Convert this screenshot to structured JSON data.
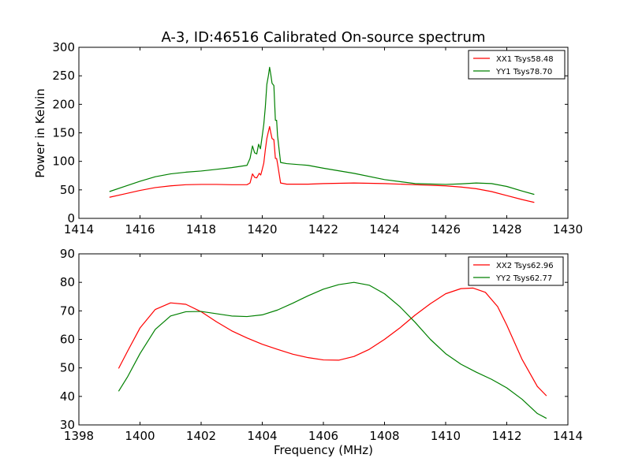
{
  "chart_data": [
    {
      "type": "line",
      "title": "A-3, ID:46516 Calibrated On-source spectrum",
      "xlabel": "",
      "ylabel": "Power in Kelvin",
      "xlim": [
        1414,
        1430
      ],
      "ylim": [
        0,
        300
      ],
      "xticks": [
        1414,
        1416,
        1418,
        1420,
        1422,
        1424,
        1426,
        1428,
        1430
      ],
      "yticks": [
        0,
        50,
        100,
        150,
        200,
        250,
        300
      ],
      "legend_position": "top-right",
      "grid": false,
      "series": [
        {
          "name": "XX1 Tsys58.48",
          "color": "#ff0000",
          "points": [
            [
              1415.0,
              37
            ],
            [
              1415.5,
              43
            ],
            [
              1416.0,
              49
            ],
            [
              1416.5,
              54
            ],
            [
              1417.0,
              57
            ],
            [
              1417.5,
              59
            ],
            [
              1418.0,
              59.5
            ],
            [
              1418.5,
              59.5
            ],
            [
              1419.0,
              59
            ],
            [
              1419.5,
              59
            ],
            [
              1419.6,
              62
            ],
            [
              1419.68,
              78
            ],
            [
              1419.75,
              72
            ],
            [
              1419.82,
              71
            ],
            [
              1419.9,
              79
            ],
            [
              1419.95,
              76
            ],
            [
              1420.0,
              86
            ],
            [
              1420.05,
              97
            ],
            [
              1420.1,
              120
            ],
            [
              1420.15,
              140
            ],
            [
              1420.2,
              152
            ],
            [
              1420.24,
              161
            ],
            [
              1420.28,
              150
            ],
            [
              1420.32,
              140
            ],
            [
              1420.38,
              138
            ],
            [
              1420.43,
              105
            ],
            [
              1420.47,
              105
            ],
            [
              1420.5,
              96
            ],
            [
              1420.6,
              62
            ],
            [
              1420.8,
              60
            ],
            [
              1421.5,
              60
            ],
            [
              1422.0,
              61
            ],
            [
              1423.0,
              62
            ],
            [
              1424.0,
              61
            ],
            [
              1425.0,
              59
            ],
            [
              1426.0,
              57
            ],
            [
              1426.5,
              55
            ],
            [
              1427.0,
              52
            ],
            [
              1427.5,
              47
            ],
            [
              1428.0,
              40
            ],
            [
              1428.5,
              33
            ],
            [
              1428.9,
              28
            ]
          ]
        },
        {
          "name": "YY1 Tsys78.70",
          "color": "#008000",
          "points": [
            [
              1415.0,
              47
            ],
            [
              1415.5,
              56
            ],
            [
              1416.0,
              65
            ],
            [
              1416.5,
              73
            ],
            [
              1417.0,
              78
            ],
            [
              1417.5,
              81
            ],
            [
              1418.0,
              83
            ],
            [
              1418.5,
              86
            ],
            [
              1419.0,
              89
            ],
            [
              1419.5,
              93
            ],
            [
              1419.6,
              105
            ],
            [
              1419.68,
              127
            ],
            [
              1419.75,
              115
            ],
            [
              1419.82,
              113
            ],
            [
              1419.88,
              130
            ],
            [
              1419.94,
              122
            ],
            [
              1420.0,
              145
            ],
            [
              1420.05,
              165
            ],
            [
              1420.1,
              195
            ],
            [
              1420.15,
              235
            ],
            [
              1420.2,
              250
            ],
            [
              1420.24,
              265
            ],
            [
              1420.28,
              252
            ],
            [
              1420.32,
              237
            ],
            [
              1420.38,
              233
            ],
            [
              1420.43,
              172
            ],
            [
              1420.47,
              172
            ],
            [
              1420.5,
              145
            ],
            [
              1420.6,
              98
            ],
            [
              1420.8,
              96
            ],
            [
              1421.5,
              93
            ],
            [
              1422.0,
              88
            ],
            [
              1423.0,
              79
            ],
            [
              1424.0,
              68
            ],
            [
              1425.0,
              61
            ],
            [
              1426.0,
              59.5
            ],
            [
              1426.5,
              60.5
            ],
            [
              1427.0,
              62
            ],
            [
              1427.5,
              61
            ],
            [
              1428.0,
              56
            ],
            [
              1428.5,
              48
            ],
            [
              1428.9,
              42
            ]
          ]
        }
      ]
    },
    {
      "type": "line",
      "title": "",
      "xlabel": "Frequency (MHz)",
      "ylabel": "",
      "xlim": [
        1398,
        1414
      ],
      "ylim": [
        30,
        90
      ],
      "xticks": [
        1398,
        1400,
        1402,
        1404,
        1406,
        1408,
        1410,
        1412,
        1414
      ],
      "yticks": [
        30,
        40,
        50,
        60,
        70,
        80,
        90
      ],
      "legend_position": "top-right",
      "grid": false,
      "series": [
        {
          "name": "XX2 Tsys62.96",
          "color": "#ff0000",
          "points": [
            [
              1399.3,
              49.8
            ],
            [
              1399.6,
              56
            ],
            [
              1400.0,
              64
            ],
            [
              1400.5,
              70.5
            ],
            [
              1401.0,
              72.8
            ],
            [
              1401.5,
              72.3
            ],
            [
              1402.0,
              69.7
            ],
            [
              1402.5,
              66.2
            ],
            [
              1403.0,
              63
            ],
            [
              1403.5,
              60.5
            ],
            [
              1404.0,
              58.3
            ],
            [
              1404.5,
              56.5
            ],
            [
              1405.0,
              54.8
            ],
            [
              1405.5,
              53.6
            ],
            [
              1406.0,
              52.8
            ],
            [
              1406.5,
              52.7
            ],
            [
              1407.0,
              54
            ],
            [
              1407.5,
              56.5
            ],
            [
              1408.0,
              60
            ],
            [
              1408.5,
              64
            ],
            [
              1409.0,
              68.5
            ],
            [
              1409.5,
              72.5
            ],
            [
              1410.0,
              76
            ],
            [
              1410.5,
              77.8
            ],
            [
              1410.9,
              78
            ],
            [
              1411.3,
              76.5
            ],
            [
              1411.7,
              71.5
            ],
            [
              1412.0,
              65
            ],
            [
              1412.5,
              53
            ],
            [
              1413.0,
              43.5
            ],
            [
              1413.3,
              40.2
            ]
          ]
        },
        {
          "name": "YY2 Tsys62.77",
          "color": "#008000",
          "points": [
            [
              1399.3,
              41.8
            ],
            [
              1399.6,
              47
            ],
            [
              1400.0,
              55
            ],
            [
              1400.5,
              63.5
            ],
            [
              1401.0,
              68.2
            ],
            [
              1401.5,
              69.7
            ],
            [
              1402.0,
              69.8
            ],
            [
              1402.5,
              69
            ],
            [
              1403.0,
              68.2
            ],
            [
              1403.5,
              68
            ],
            [
              1404.0,
              68.6
            ],
            [
              1404.5,
              70.3
            ],
            [
              1405.0,
              72.7
            ],
            [
              1405.5,
              75.3
            ],
            [
              1406.0,
              77.6
            ],
            [
              1406.5,
              79.2
            ],
            [
              1407.0,
              80
            ],
            [
              1407.5,
              79
            ],
            [
              1408.0,
              76
            ],
            [
              1408.5,
              71.5
            ],
            [
              1409.0,
              66
            ],
            [
              1409.5,
              60
            ],
            [
              1410.0,
              55
            ],
            [
              1410.5,
              51.3
            ],
            [
              1411.0,
              48.5
            ],
            [
              1411.5,
              46
            ],
            [
              1412.0,
              43
            ],
            [
              1412.5,
              39
            ],
            [
              1413.0,
              34
            ],
            [
              1413.3,
              32.3
            ]
          ]
        }
      ]
    }
  ]
}
